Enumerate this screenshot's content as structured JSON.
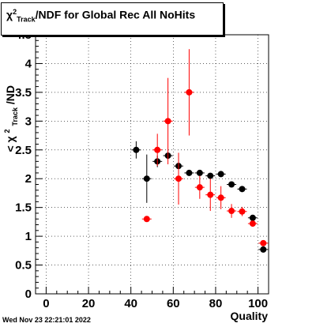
{
  "title": {
    "chi": "χ",
    "sup": "2",
    "sub": "Track",
    "rest": "/NDF for Global Rec All NoHits"
  },
  "timestamp": "Wed Nov 23 22:21:01 2022",
  "chart_data": {
    "type": "scatter",
    "xlabel": "Quality",
    "ylabel": "<χ²Track/ND",
    "xlim": [
      -5,
      105
    ],
    "ylim": [
      0,
      4.5
    ],
    "x_ticks": [
      0,
      20,
      40,
      60,
      80,
      100
    ],
    "y_ticks": [
      0,
      0.5,
      1,
      1.5,
      2,
      2.5,
      3,
      3.5,
      4,
      4.5
    ],
    "grid": true,
    "colors": {
      "black_series": "#000000",
      "red_series": "#ff0000"
    },
    "series": [
      {
        "color": "black",
        "points": [
          {
            "x": 42.5,
            "y": 2.5,
            "err": 0.15
          },
          {
            "x": 47.5,
            "y": 2.0,
            "err": 0.42
          },
          {
            "x": 52.5,
            "y": 2.3,
            "err": 0.1
          },
          {
            "x": 57.5,
            "y": 2.4,
            "err": 0.06
          },
          {
            "x": 62.5,
            "y": 2.22,
            "err": 0.06
          },
          {
            "x": 67.5,
            "y": 2.1,
            "err": 0.05
          },
          {
            "x": 72.5,
            "y": 2.1,
            "err": 0.05
          },
          {
            "x": 77.5,
            "y": 2.05,
            "err": 0.05
          },
          {
            "x": 82.5,
            "y": 2.08,
            "err": 0.04
          },
          {
            "x": 87.5,
            "y": 1.9,
            "err": 0.04
          },
          {
            "x": 92.5,
            "y": 1.82,
            "err": 0.03
          },
          {
            "x": 97.5,
            "y": 1.32,
            "err": 0.03
          },
          {
            "x": 102.5,
            "y": 0.77,
            "err": 0.03
          }
        ]
      },
      {
        "color": "red",
        "points": [
          {
            "x": 47.5,
            "y": 1.3,
            "err": 0.03
          },
          {
            "x": 52.5,
            "y": 2.5,
            "err": 0.28
          },
          {
            "x": 57.5,
            "y": 3.0,
            "err": 0.75
          },
          {
            "x": 62.5,
            "y": 2.0,
            "err": 0.45
          },
          {
            "x": 67.5,
            "y": 3.5,
            "err": 0.75
          },
          {
            "x": 72.5,
            "y": 1.85,
            "err": 0.2
          },
          {
            "x": 77.5,
            "y": 1.72,
            "err": 0.28
          },
          {
            "x": 82.5,
            "y": 1.67,
            "err": 0.2
          },
          {
            "x": 87.5,
            "y": 1.44,
            "err": 0.12
          },
          {
            "x": 92.5,
            "y": 1.43,
            "err": 0.08
          },
          {
            "x": 97.5,
            "y": 1.22,
            "err": 0.05
          },
          {
            "x": 102.5,
            "y": 0.88,
            "err": 0.04
          }
        ]
      }
    ]
  }
}
